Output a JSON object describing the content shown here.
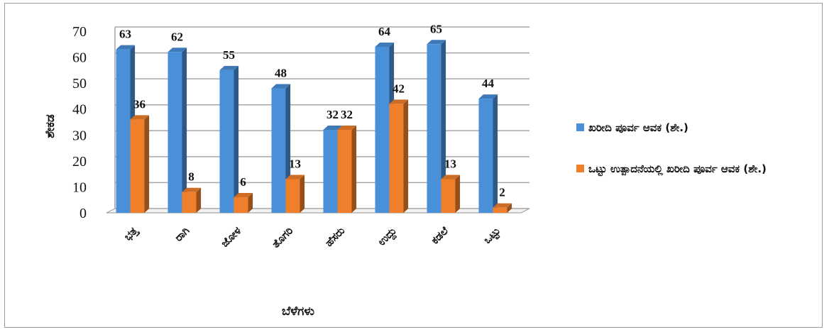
{
  "chart_data": {
    "type": "bar",
    "categories": [
      "ಭತ್ತ",
      "ರಾಗಿ",
      "ಜೋಳ",
      "ತೊಗರಿ",
      "ಹೆಸರು",
      "ಉದ್ದು",
      "ಕಡಲೆ",
      "ಒಟ್ಟು"
    ],
    "series": [
      {
        "name": "ಖರೀದಿ ಪೂರ್ವ ಆವಕ (ಶೇ.)",
        "values": [
          63,
          62,
          55,
          48,
          32,
          64,
          65,
          44
        ],
        "color": "#4a90d9"
      },
      {
        "name": "ಒಟ್ಟು ಉತ್ಪಾದನೆಯಲ್ಲಿ ಖರೀದಿ ಪೂರ್ವ ಆವಕ (ಶೇ.)",
        "values": [
          36,
          8,
          6,
          13,
          32,
          42,
          13,
          2
        ],
        "color": "#f07f2c"
      }
    ],
    "xlabel": "ಬೆಳೆಗಳು",
    "ylabel": "ಶೇಕಡ",
    "ylim": [
      0,
      70
    ],
    "yticks": [
      "0",
      "10",
      "20",
      "30",
      "40",
      "50",
      "60",
      "70"
    ],
    "grid": true,
    "legend_position": "right"
  }
}
